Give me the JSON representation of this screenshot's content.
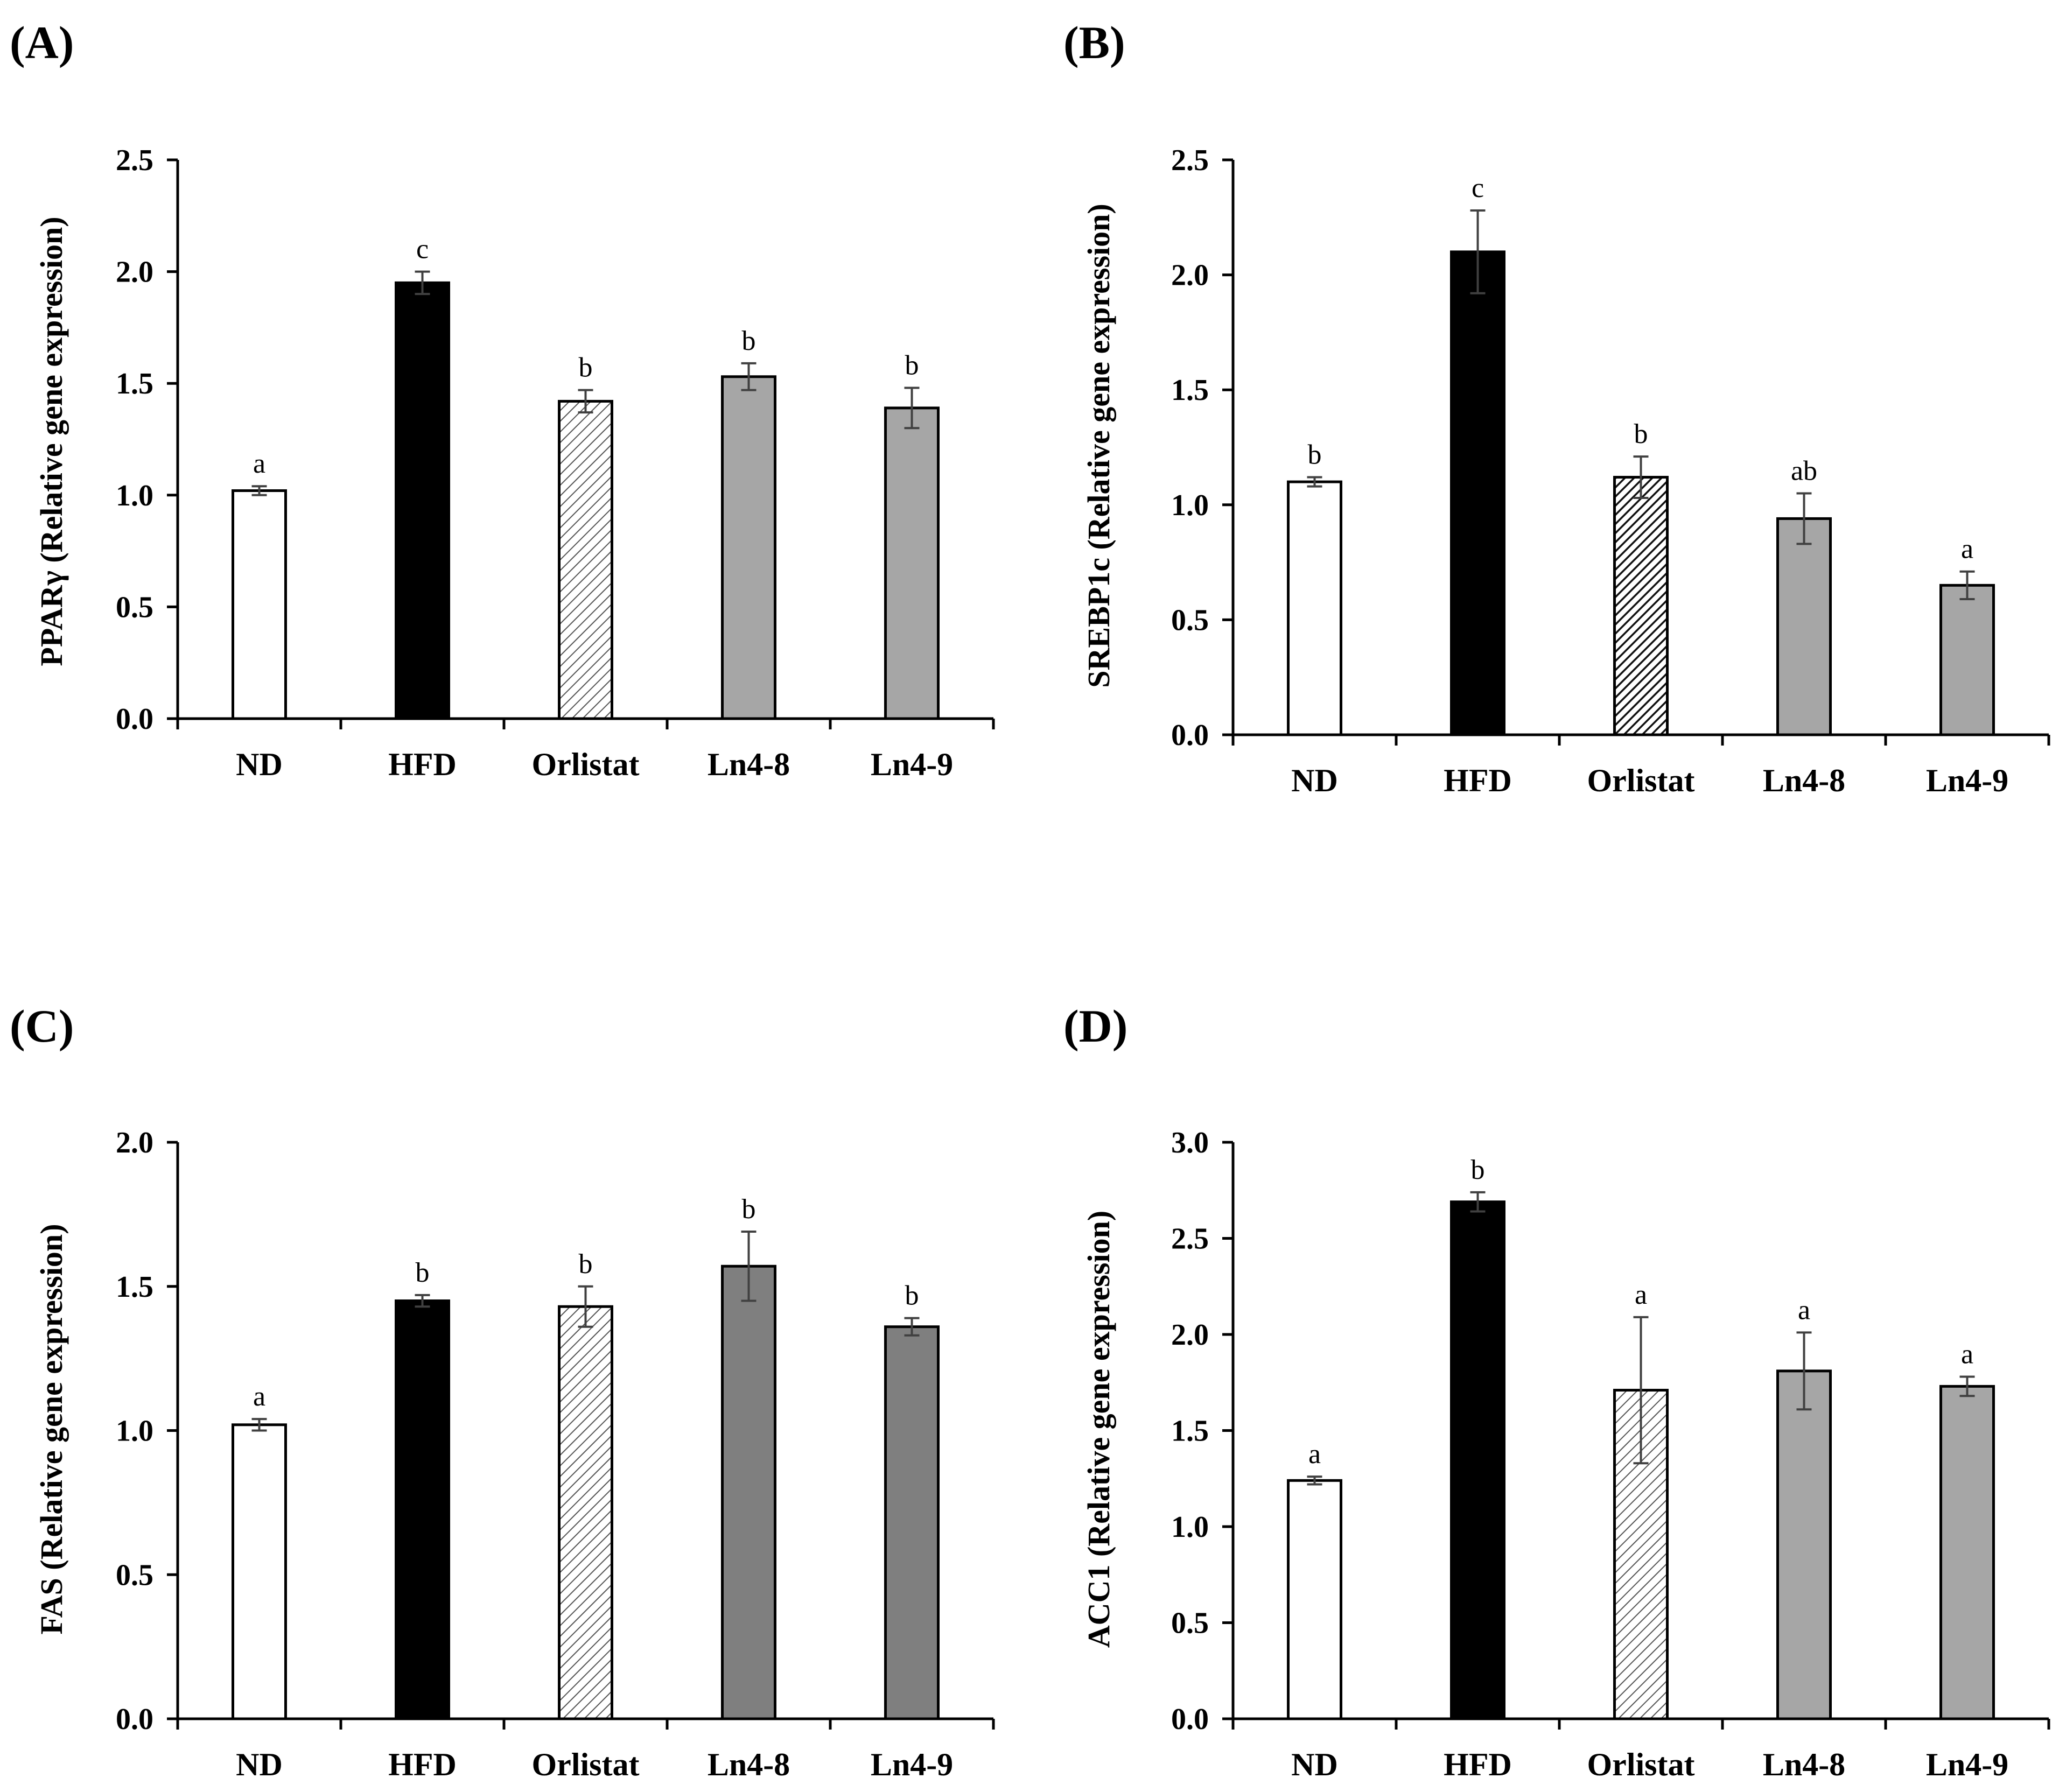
{
  "chart_data": [
    {
      "panel": "(A)",
      "type": "bar",
      "title": "",
      "xlabel": "",
      "ylabel": "PPARγ (Relative gene expression)",
      "categories": [
        "ND",
        "HFD",
        "Orlistat",
        "Ln4-8",
        "Ln4-9"
      ],
      "values": [
        1.02,
        1.95,
        1.42,
        1.53,
        1.39
      ],
      "errors": [
        0.02,
        0.05,
        0.05,
        0.06,
        0.09
      ],
      "significance": [
        "a",
        "c",
        "b",
        "b",
        "b"
      ],
      "fills": [
        "white",
        "black",
        "hatch-light",
        "gray",
        "gray"
      ],
      "ylim": [
        0,
        2.5
      ],
      "yticks": [
        "0.0",
        "0.5",
        "1.0",
        "1.5",
        "2.0",
        "2.5"
      ],
      "grid": false
    },
    {
      "panel": "(B)",
      "type": "bar",
      "title": "",
      "xlabel": "",
      "ylabel": "SREBP1c (Relative gene expression)",
      "categories": [
        "ND",
        "HFD",
        "Orlistat",
        "Ln4-8",
        "Ln4-9"
      ],
      "values": [
        1.1,
        2.1,
        1.12,
        0.94,
        0.65
      ],
      "errors": [
        0.02,
        0.18,
        0.09,
        0.11,
        0.06
      ],
      "significance": [
        "b",
        "c",
        "b",
        "ab",
        "a"
      ],
      "fills": [
        "white",
        "black",
        "hatch-dark",
        "gray",
        "gray"
      ],
      "ylim": [
        0,
        2.5
      ],
      "yticks": [
        "0.0",
        "0.5",
        "1.0",
        "1.5",
        "2.0",
        "2.5"
      ],
      "grid": false
    },
    {
      "panel": "(C)",
      "type": "bar",
      "title": "",
      "xlabel": "",
      "ylabel": "FAS (Relative gene expression)",
      "categories": [
        "ND",
        "HFD",
        "Orlistat",
        "Ln4-8",
        "Ln4-9"
      ],
      "values": [
        1.02,
        1.45,
        1.43,
        1.57,
        1.36
      ],
      "errors": [
        0.02,
        0.02,
        0.07,
        0.12,
        0.03
      ],
      "significance": [
        "a",
        "b",
        "b",
        "b",
        "b"
      ],
      "fills": [
        "white",
        "black",
        "hatch-light",
        "darkgray",
        "darkgray"
      ],
      "ylim": [
        0,
        2.0
      ],
      "yticks": [
        "0.0",
        "0.5",
        "1.0",
        "1.5",
        "2.0"
      ],
      "grid": false
    },
    {
      "panel": "(D)",
      "type": "bar",
      "title": "",
      "xlabel": "",
      "ylabel": "ACC1 (Relative gene expression)",
      "categories": [
        "ND",
        "HFD",
        "Orlistat",
        "Ln4-8",
        "Ln4-9"
      ],
      "values": [
        1.24,
        2.69,
        1.71,
        1.81,
        1.73
      ],
      "errors": [
        0.02,
        0.05,
        0.38,
        0.2,
        0.05
      ],
      "significance": [
        "a",
        "b",
        "a",
        "a",
        "a"
      ],
      "fills": [
        "white",
        "black",
        "hatch-light",
        "gray",
        "gray"
      ],
      "ylim": [
        0,
        3.0
      ],
      "yticks": [
        "0.0",
        "0.5",
        "1.0",
        "1.5",
        "2.0",
        "2.5",
        "3.0"
      ],
      "grid": false
    }
  ],
  "colors": {
    "white": "#ffffff",
    "black": "#000000",
    "gray": "#a6a6a6",
    "darkgray": "#7f7f7f",
    "axis": "#000000",
    "errorbar": "#404040"
  }
}
